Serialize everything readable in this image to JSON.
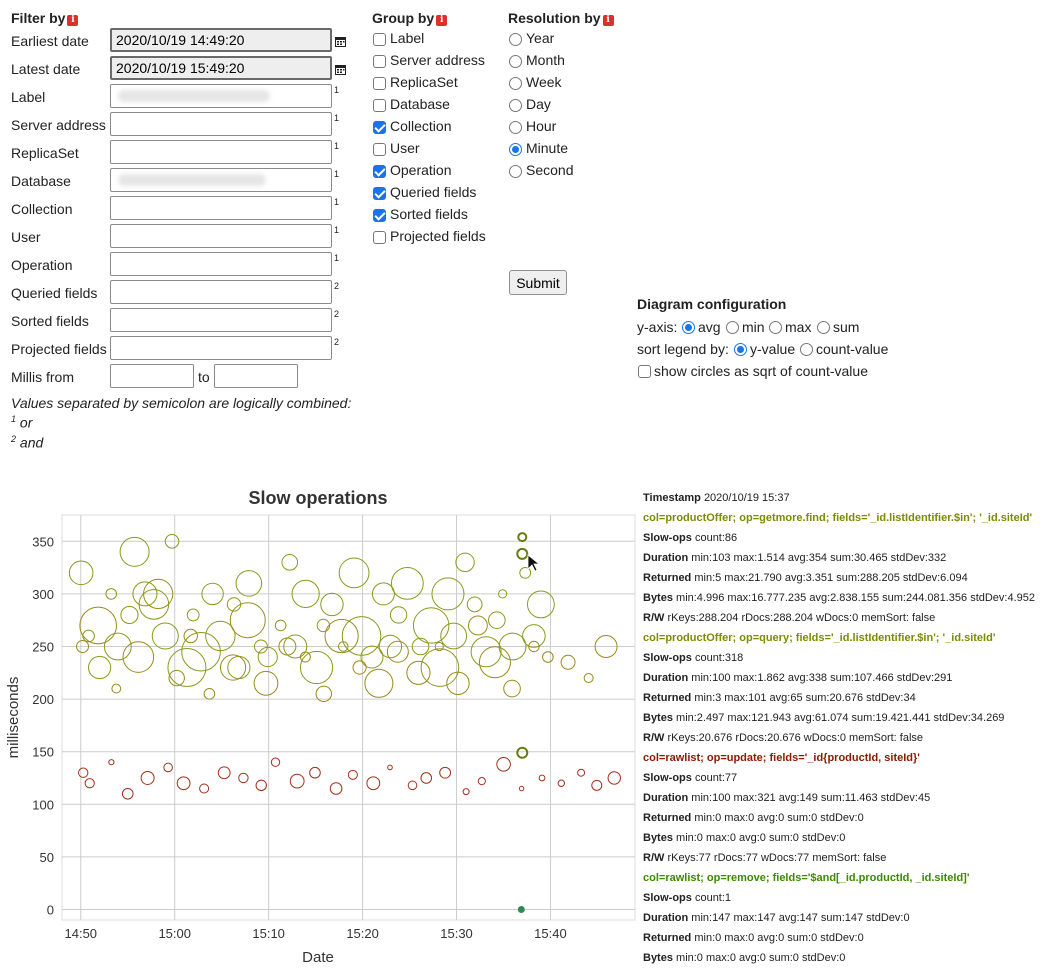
{
  "filter": {
    "title": "Filter by",
    "fields": [
      {
        "label": "Earliest date",
        "value": "2020/10/19 14:49:20",
        "sup": ""
      },
      {
        "label": "Latest date",
        "value": "2020/10/19 15:49:20",
        "sup": ""
      },
      {
        "label": "Label",
        "value": "",
        "sup": "1"
      },
      {
        "label": "Server address",
        "value": "",
        "sup": "1"
      },
      {
        "label": "ReplicaSet",
        "value": "",
        "sup": "1"
      },
      {
        "label": "Database",
        "value": "",
        "sup": "1"
      },
      {
        "label": "Collection",
        "value": "",
        "sup": "1"
      },
      {
        "label": "User",
        "value": "",
        "sup": "1"
      },
      {
        "label": "Operation",
        "value": "",
        "sup": "1"
      },
      {
        "label": "Queried fields",
        "value": "",
        "sup": "2"
      },
      {
        "label": "Sorted fields",
        "value": "",
        "sup": "2"
      },
      {
        "label": "Projected fields",
        "value": "",
        "sup": "2"
      }
    ],
    "millis_label": "Millis from",
    "millis_to": "to",
    "note_line1": "Values separated by semicolon are logically combined:",
    "note_or_sup": "1",
    "note_or": "or",
    "note_and_sup": "2",
    "note_and": "and"
  },
  "group": {
    "title": "Group by",
    "items": [
      {
        "label": "Label",
        "checked": false
      },
      {
        "label": "Server address",
        "checked": false
      },
      {
        "label": "ReplicaSet",
        "checked": false
      },
      {
        "label": "Database",
        "checked": false
      },
      {
        "label": "Collection",
        "checked": true
      },
      {
        "label": "User",
        "checked": false
      },
      {
        "label": "Operation",
        "checked": true
      },
      {
        "label": "Queried fields",
        "checked": true
      },
      {
        "label": "Sorted fields",
        "checked": true
      },
      {
        "label": "Projected fields",
        "checked": false
      }
    ]
  },
  "resolution": {
    "title": "Resolution by",
    "items": [
      {
        "label": "Year",
        "selected": false
      },
      {
        "label": "Month",
        "selected": false
      },
      {
        "label": "Week",
        "selected": false
      },
      {
        "label": "Day",
        "selected": false
      },
      {
        "label": "Hour",
        "selected": false
      },
      {
        "label": "Minute",
        "selected": true
      },
      {
        "label": "Second",
        "selected": false
      }
    ]
  },
  "submit_label": "Submit",
  "diagram": {
    "title": "Diagram configuration",
    "yaxis_label": "y-axis:",
    "yaxis_options": [
      "avg",
      "min",
      "max",
      "sum"
    ],
    "yaxis_selected": "avg",
    "sort_label": "sort legend by:",
    "sort_options": [
      "y-value",
      "count-value"
    ],
    "sort_selected": "y-value",
    "sqrt_label": "show circles as sqrt of count-value",
    "sqrt_checked": false
  },
  "details": [
    {
      "key": "Timestamp",
      "value": "2020/10/19 15:37",
      "kind": "plain"
    },
    {
      "key": "col=productOffer; op=getmore.find; fields='_id.listIdentifier.$in'; '_id.siteId'",
      "value": "",
      "kind": "olive"
    },
    {
      "key": "Slow-ops",
      "value": "count:86",
      "kind": "plain"
    },
    {
      "key": "Duration",
      "value": "min:103 max:1.514 avg:354 sum:30.465 stdDev:332",
      "kind": "plain"
    },
    {
      "key": "Returned",
      "value": "min:5 max:21.790 avg:3.351 sum:288.205 stdDev:6.094",
      "kind": "plain"
    },
    {
      "key": "Bytes",
      "value": "min:4.996 max:16.777.235 avg:2.838.155 sum:244.081.356 stdDev:4.952",
      "kind": "plain"
    },
    {
      "key": "R/W",
      "value": "rKeys:288.204 rDocs:288.204 wDocs:0 memSort: false",
      "kind": "plain"
    },
    {
      "key": "col=productOffer; op=query; fields='_id.listIdentifier.$in'; '_id.siteId'",
      "value": "",
      "kind": "olive"
    },
    {
      "key": "Slow-ops",
      "value": "count:318",
      "kind": "plain"
    },
    {
      "key": "Duration",
      "value": "min:100 max:1.862 avg:338 sum:107.466 stdDev:291",
      "kind": "plain"
    },
    {
      "key": "Returned",
      "value": "min:3 max:101 avg:65 sum:20.676 stdDev:34",
      "kind": "plain"
    },
    {
      "key": "Bytes",
      "value": "min:2.497 max:121.943 avg:61.074 sum:19.421.441 stdDev:34.269",
      "kind": "plain"
    },
    {
      "key": "R/W",
      "value": "rKeys:20.676 rDocs:20.676 wDocs:0 memSort: false",
      "kind": "plain"
    },
    {
      "key": "col=rawlist; op=update; fields='_id{productId, siteId}'",
      "value": "",
      "kind": "red"
    },
    {
      "key": "Slow-ops",
      "value": "count:77",
      "kind": "plain"
    },
    {
      "key": "Duration",
      "value": "min:100 max:321 avg:149 sum:11.463 stdDev:45",
      "kind": "plain"
    },
    {
      "key": "Returned",
      "value": "min:0 max:0 avg:0 sum:0 stdDev:0",
      "kind": "plain"
    },
    {
      "key": "Bytes",
      "value": "min:0 max:0 avg:0 sum:0 stdDev:0",
      "kind": "plain"
    },
    {
      "key": "R/W",
      "value": "rKeys:77 rDocs:77 wDocs:77 memSort: false",
      "kind": "plain"
    },
    {
      "key": "col=rawlist; op=remove; fields='$and[_id.productId, _id.siteId]'",
      "value": "",
      "kind": "green"
    },
    {
      "key": "Slow-ops",
      "value": "count:1",
      "kind": "plain"
    },
    {
      "key": "Duration",
      "value": "min:147 max:147 avg:147 sum:147 stdDev:0",
      "kind": "plain"
    },
    {
      "key": "Returned",
      "value": "min:0 max:0 avg:0 sum:0 stdDev:0",
      "kind": "plain"
    },
    {
      "key": "Bytes",
      "value": "min:0 max:0 avg:0 sum:0 stdDev:0",
      "kind": "plain"
    }
  ],
  "colors": {
    "olive": "#8a9a1a",
    "red": "#a0301a",
    "green": "#2e8b57",
    "accent": "#1a73e8",
    "grid": "#cccccc"
  },
  "chart_data": {
    "type": "scatter",
    "title": "Slow operations",
    "xlabel": "Date",
    "ylabel": "milliseconds",
    "x_ticks": [
      "14:50",
      "15:00",
      "15:10",
      "15:20",
      "15:30",
      "15:40"
    ],
    "y_ticks": [
      0,
      50,
      100,
      150,
      200,
      250,
      300,
      350
    ],
    "ylim": [
      -10,
      375
    ],
    "xlim_minutes": [
      -2,
      59
    ],
    "grid": true,
    "series": [
      {
        "name": "col=productOffer; op=getmore.find",
        "color": "#8a9a1a",
        "points": [
          [
            0,
            320
          ],
          [
            1,
            260
          ],
          [
            2,
            230
          ],
          [
            3,
            300
          ],
          [
            4,
            250
          ],
          [
            5,
            280
          ],
          [
            6,
            340
          ],
          [
            7,
            300
          ],
          [
            8,
            290
          ],
          [
            9,
            260
          ],
          [
            10,
            350
          ],
          [
            11,
            230
          ],
          [
            12,
            280
          ],
          [
            13,
            245
          ],
          [
            14,
            300
          ],
          [
            15,
            260
          ],
          [
            16,
            290
          ],
          [
            17,
            230
          ],
          [
            18,
            310
          ],
          [
            19,
            250
          ],
          [
            20,
            240
          ],
          [
            21,
            270
          ],
          [
            22,
            330
          ],
          [
            23,
            250
          ],
          [
            24,
            300
          ],
          [
            25,
            230
          ],
          [
            26,
            270
          ],
          [
            27,
            290
          ],
          [
            28,
            250
          ],
          [
            29,
            320
          ],
          [
            30,
            260
          ],
          [
            31,
            240
          ],
          [
            32,
            300
          ],
          [
            33,
            250
          ],
          [
            34,
            280
          ],
          [
            35,
            310
          ],
          [
            36,
            250
          ],
          [
            37,
            270
          ],
          [
            38,
            230
          ],
          [
            39,
            300
          ],
          [
            40,
            260
          ],
          [
            41,
            330
          ],
          [
            42,
            290
          ],
          [
            43,
            245
          ],
          [
            44,
            275
          ],
          [
            45,
            300
          ],
          [
            46,
            250
          ],
          [
            47,
            320
          ],
          [
            48,
            260
          ],
          [
            49,
            290
          ]
        ]
      },
      {
        "name": "col=productOffer; op=query",
        "color": "#9a8a1a",
        "points": [
          [
            0,
            250
          ],
          [
            2,
            270
          ],
          [
            4,
            210
          ],
          [
            6,
            240
          ],
          [
            8,
            300
          ],
          [
            10,
            220
          ],
          [
            12,
            260
          ],
          [
            14,
            205
          ],
          [
            16,
            230
          ],
          [
            18,
            275
          ],
          [
            20,
            215
          ],
          [
            22,
            250
          ],
          [
            24,
            240
          ],
          [
            26,
            205
          ],
          [
            28,
            260
          ],
          [
            30,
            230
          ],
          [
            32,
            215
          ],
          [
            34,
            245
          ],
          [
            36,
            225
          ],
          [
            38,
            250
          ],
          [
            40,
            215
          ],
          [
            42,
            270
          ],
          [
            44,
            235
          ],
          [
            46,
            210
          ],
          [
            48,
            250
          ],
          [
            50,
            240
          ],
          [
            52,
            235
          ],
          [
            54,
            220
          ],
          [
            56,
            250
          ]
        ]
      },
      {
        "name": "col=rawlist; op=update",
        "color": "#a0301a",
        "points": [
          [
            0,
            130
          ],
          [
            1,
            120
          ],
          [
            3,
            140
          ],
          [
            5,
            110
          ],
          [
            7,
            125
          ],
          [
            9,
            135
          ],
          [
            11,
            120
          ],
          [
            13,
            115
          ],
          [
            15,
            130
          ],
          [
            17,
            125
          ],
          [
            19,
            118
          ],
          [
            21,
            140
          ],
          [
            23,
            122
          ],
          [
            25,
            130
          ],
          [
            27,
            115
          ],
          [
            29,
            128
          ],
          [
            31,
            120
          ],
          [
            33,
            135
          ],
          [
            35,
            118
          ],
          [
            37,
            125
          ],
          [
            39,
            130
          ],
          [
            41,
            112
          ],
          [
            43,
            122
          ],
          [
            45,
            138
          ],
          [
            47,
            115
          ],
          [
            49,
            125
          ],
          [
            51,
            120
          ],
          [
            53,
            130
          ],
          [
            55,
            118
          ],
          [
            57,
            125
          ]
        ]
      },
      {
        "name": "col=rawlist; op=remove",
        "color": "#2e8b57",
        "points": [
          [
            47,
            0
          ]
        ]
      }
    ]
  }
}
